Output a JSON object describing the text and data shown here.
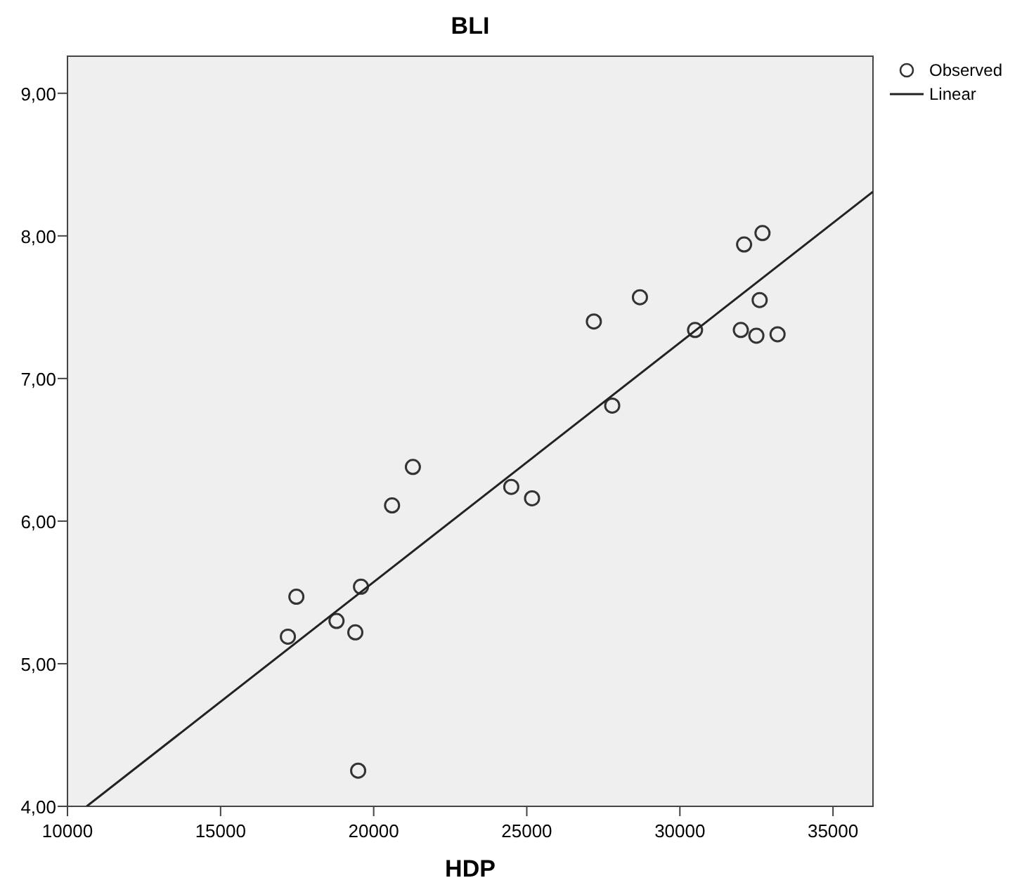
{
  "chart_data": {
    "type": "scatter",
    "title": "BLI",
    "xlabel": "HDP",
    "legend": "top right",
    "xlim": [
      10000,
      36306
    ],
    "ylim": [
      4,
      9.26
    ],
    "xticks": [
      10000,
      15000,
      20000,
      25000,
      30000,
      35000
    ],
    "yticks": [
      {
        "value": 4,
        "label": "4,00"
      },
      {
        "value": 5,
        "label": "5,00"
      },
      {
        "value": 6,
        "label": "6,00"
      },
      {
        "value": 7,
        "label": "7,00"
      },
      {
        "value": 8,
        "label": "8,00"
      },
      {
        "value": 9,
        "label": "9,00"
      }
    ],
    "series": [
      {
        "name": "Observed",
        "marker": "circle",
        "color": "#333333",
        "x": [
          17475,
          19585,
          17198,
          18786,
          19400,
          19493,
          21280,
          20600,
          24493,
          25172,
          27190,
          28695,
          27790,
          30495,
          31990,
          32498,
          33190,
          32605,
          32097,
          32697
        ],
        "values": [
          5.47,
          5.54,
          5.19,
          5.3,
          5.22,
          4.25,
          6.38,
          6.11,
          6.24,
          6.16,
          7.4,
          7.57,
          6.81,
          7.34,
          7.34,
          7.3,
          7.31,
          7.55,
          7.94,
          8.02
        ]
      },
      {
        "name": "Linear",
        "type": "line",
        "marker": "none",
        "color": "#222222",
        "x": [
          10628,
          36306
        ],
        "values": [
          4.0,
          8.31
        ]
      }
    ]
  }
}
